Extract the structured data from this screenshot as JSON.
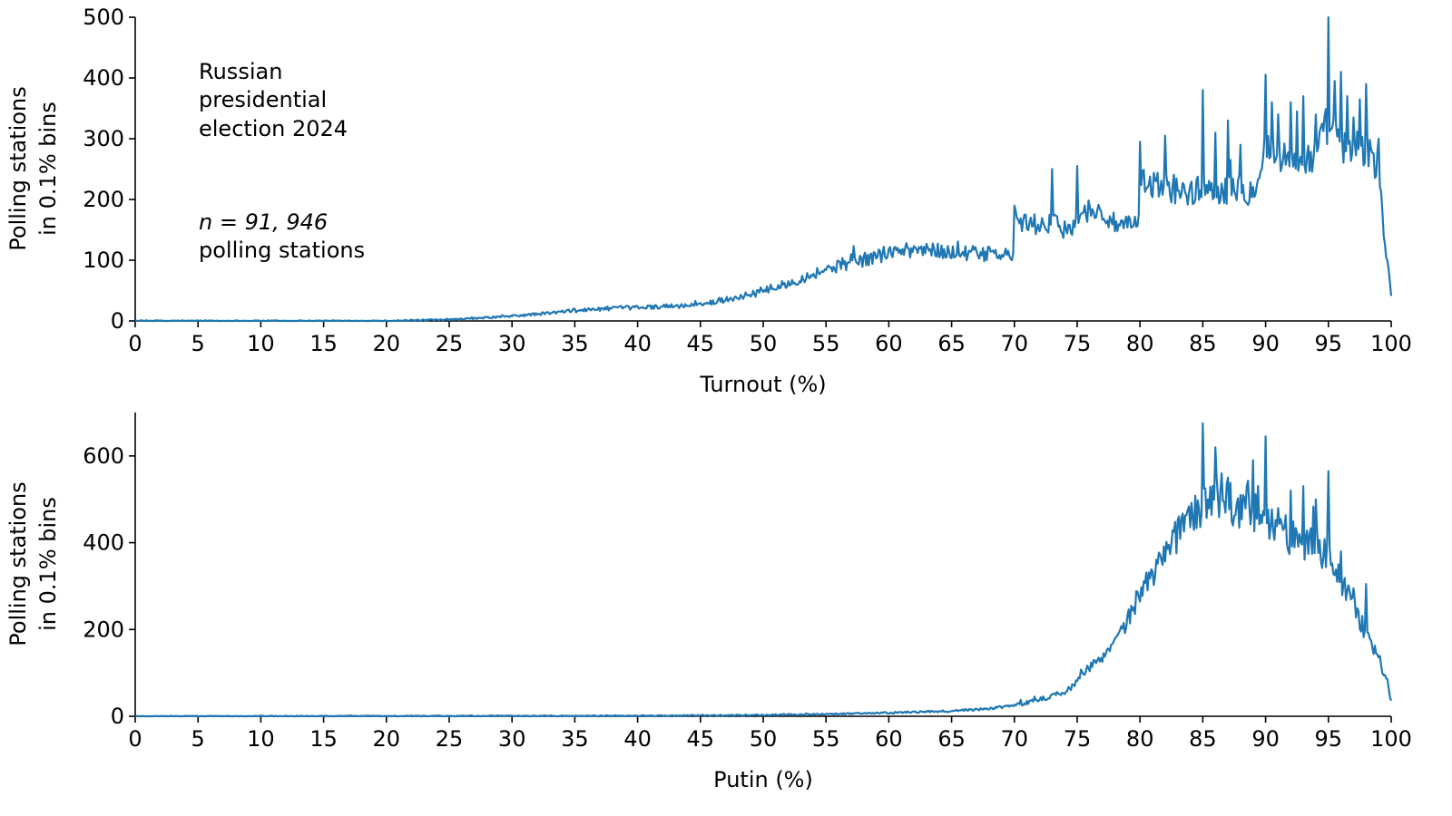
{
  "chart_data": [
    {
      "type": "line",
      "xlabel": "Turnout (%)",
      "ylabel": [
        "Polling stations",
        "in 0.1% bins"
      ],
      "xlim": [
        0,
        100
      ],
      "ylim": [
        0,
        500
      ],
      "x_ticks": [
        0,
        5,
        10,
        15,
        20,
        25,
        30,
        35,
        40,
        45,
        50,
        55,
        60,
        65,
        70,
        75,
        80,
        85,
        90,
        95,
        100
      ],
      "y_ticks": [
        0,
        100,
        200,
        300,
        400,
        500
      ],
      "color": "#1f77b4",
      "bin_width": 0.1,
      "annotations": {
        "title_lines": [
          "Russian",
          "presidential",
          "election 2024"
        ],
        "n_label": "n = 91, 946",
        "n_sublabel": "polling stations"
      },
      "series": [
        {
          "name": "Turnout",
          "x": [
            0,
            20,
            25,
            27,
            30,
            33,
            35,
            38,
            40,
            42,
            44,
            45,
            47,
            50,
            52,
            55,
            57,
            60,
            62,
            64,
            66,
            68,
            69.9,
            70,
            71,
            72,
            73,
            74,
            75,
            76,
            77,
            78,
            79,
            79.9,
            80,
            81,
            82,
            83,
            84,
            85,
            86,
            87,
            88,
            89,
            90,
            91,
            92,
            93,
            94,
            95,
            96,
            97,
            97.8,
            98.5,
            99,
            99.5,
            100
          ],
          "values": [
            0,
            0,
            2,
            4,
            8,
            13,
            17,
            21,
            22,
            24,
            25,
            27,
            35,
            48,
            62,
            85,
            95,
            112,
            118,
            115,
            112,
            110,
            108,
            165,
            160,
            158,
            160,
            150,
            165,
            185,
            175,
            160,
            155,
            160,
            230,
            225,
            220,
            215,
            210,
            220,
            215,
            215,
            210,
            215,
            290,
            270,
            265,
            265,
            270,
            330,
            285,
            275,
            280,
            270,
            250,
            130,
            45
          ],
          "spikes": [
            [
              35.0,
              20
            ],
            [
              57.0,
              110
            ],
            [
              70.0,
              190
            ],
            [
              73.0,
              250
            ],
            [
              75.0,
              255
            ],
            [
              80.0,
              295
            ],
            [
              82.0,
              305
            ],
            [
              85.0,
              380
            ],
            [
              86.0,
              310
            ],
            [
              87.0,
              330
            ],
            [
              88.0,
              290
            ],
            [
              90.0,
              405
            ],
            [
              90.5,
              360
            ],
            [
              91.0,
              340
            ],
            [
              92.0,
              360
            ],
            [
              92.5,
              345
            ],
            [
              93.0,
              370
            ],
            [
              94.0,
              340
            ],
            [
              95.0,
              500
            ],
            [
              95.5,
              395
            ],
            [
              96.0,
              410
            ],
            [
              96.5,
              370
            ],
            [
              97.0,
              335
            ],
            [
              97.5,
              365
            ],
            [
              98.0,
              390
            ],
            [
              99.0,
              300
            ]
          ]
        }
      ]
    },
    {
      "type": "line",
      "xlabel": "Putin (%)",
      "ylabel": [
        "Polling stations",
        "in 0.1% bins"
      ],
      "xlim": [
        0,
        100
      ],
      "ylim": [
        0,
        700
      ],
      "x_ticks": [
        0,
        5,
        10,
        15,
        20,
        25,
        30,
        35,
        40,
        45,
        50,
        55,
        60,
        65,
        70,
        75,
        80,
        85,
        90,
        95,
        100
      ],
      "y_ticks": [
        0,
        200,
        400,
        600
      ],
      "color": "#1f77b4",
      "bin_width": 0.1,
      "series": [
        {
          "name": "Putin",
          "x": [
            0,
            40,
            50,
            55,
            60,
            65,
            68,
            70,
            72,
            74,
            75,
            76,
            78,
            80,
            81,
            82,
            83,
            84,
            85,
            86,
            87,
            88,
            89,
            90,
            91,
            92,
            93,
            94,
            95,
            96,
            97,
            98,
            99,
            100
          ],
          "values": [
            0,
            1,
            3,
            5,
            8,
            12,
            18,
            25,
            38,
            55,
            80,
            115,
            165,
            280,
            320,
            370,
            420,
            460,
            490,
            500,
            495,
            480,
            470,
            455,
            440,
            410,
            400,
            390,
            370,
            310,
            255,
            190,
            140,
            40
          ],
          "spikes": [
            [
              85.0,
              675
            ],
            [
              86.0,
              620
            ],
            [
              86.5,
              560
            ],
            [
              87.0,
              550
            ],
            [
              88.0,
              510
            ],
            [
              88.5,
              530
            ],
            [
              89.0,
              590
            ],
            [
              90.0,
              645
            ],
            [
              91.0,
              480
            ],
            [
              92.0,
              520
            ],
            [
              93.0,
              530
            ],
            [
              94.0,
              500
            ],
            [
              95.0,
              565
            ],
            [
              96.0,
              380
            ],
            [
              97.0,
              295
            ],
            [
              98.0,
              305
            ]
          ]
        }
      ]
    }
  ]
}
